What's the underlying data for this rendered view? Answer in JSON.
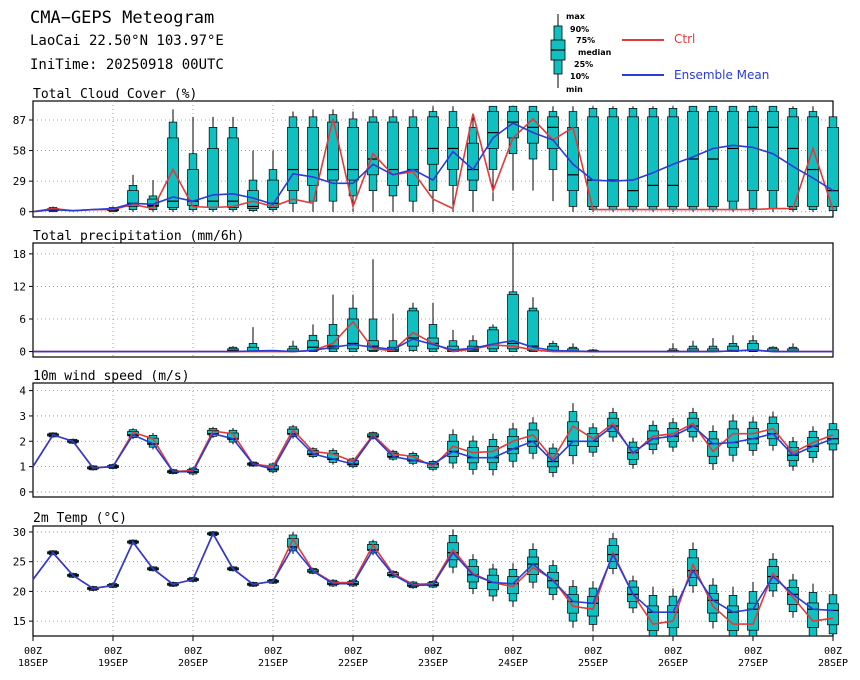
{
  "header": {
    "title": "CMA−GEPS Meteogram",
    "location": "LaoCai 22.50°N 103.97°E",
    "init_time": "IniTime: 20250918 00UTC"
  },
  "legend": {
    "box_labels": [
      "max",
      "90%",
      "75%",
      "median",
      "25%",
      "10%",
      "min"
    ],
    "ctrl_label": "Ctrl",
    "mean_label": "Ensemble Mean",
    "ctrl_color": "#e03a3a",
    "mean_color": "#2a3bd6",
    "box_color": "#10c0c0"
  },
  "time_axis": {
    "ticks": [
      {
        "top": "00Z",
        "bottom": "18SEP"
      },
      {
        "top": "00Z",
        "bottom": "19SEP"
      },
      {
        "top": "00Z",
        "bottom": "20SEP"
      },
      {
        "top": "00Z",
        "bottom": "21SEP"
      },
      {
        "top": "00Z",
        "bottom": "22SEP"
      },
      {
        "top": "00Z",
        "bottom": "23SEP"
      },
      {
        "top": "00Z",
        "bottom": "24SEP"
      },
      {
        "top": "00Z",
        "bottom": "25SEP"
      },
      {
        "top": "00Z",
        "bottom": "26SEP"
      },
      {
        "top": "00Z",
        "bottom": "27SEP"
      },
      {
        "top": "00Z",
        "bottom": "28SEP"
      }
    ]
  },
  "chart_data": [
    {
      "type": "boxplot-line",
      "title": "Total Cloud Cover (%)",
      "ylim": [
        -5,
        105
      ],
      "yticks": [
        0,
        29,
        58,
        87
      ],
      "x_unit": "6-hourly steps from 2025-09-18 00UTC (0-40)",
      "ctrl": [
        0,
        3,
        1,
        2,
        2,
        7,
        3,
        40,
        5,
        4,
        5,
        10,
        5,
        12,
        8,
        88,
        5,
        55,
        35,
        38,
        12,
        3,
        93,
        20,
        70,
        88,
        68,
        80,
        2,
        2,
        2,
        2,
        2,
        2,
        2,
        2,
        2,
        3,
        3,
        60,
        2
      ],
      "mean": [
        0,
        2,
        1,
        2,
        3,
        8,
        7,
        14,
        10,
        16,
        17,
        13,
        7,
        36,
        33,
        27,
        27,
        45,
        35,
        40,
        30,
        57,
        40,
        70,
        84,
        75,
        68,
        45,
        30,
        29,
        30,
        37,
        45,
        52,
        60,
        63,
        61,
        55,
        43,
        32,
        20
      ],
      "boxes": [
        {
          "t": 1,
          "min": 0,
          "p10": 0,
          "p25": 1,
          "med": 2,
          "p75": 3,
          "p90": 4,
          "max": 5
        },
        {
          "t": 4,
          "min": 0,
          "p10": 0,
          "p25": 1,
          "med": 2,
          "p75": 3,
          "p90": 4,
          "max": 5
        },
        {
          "t": 5,
          "min": 0,
          "p10": 2,
          "p25": 5,
          "med": 8,
          "p75": 20,
          "p90": 25,
          "max": 35
        },
        {
          "t": 6,
          "min": 0,
          "p10": 2,
          "p25": 5,
          "med": 6,
          "p75": 12,
          "p90": 15,
          "max": 30
        },
        {
          "t": 7,
          "min": 0,
          "p10": 2,
          "p25": 4,
          "med": 10,
          "p75": 70,
          "p90": 85,
          "max": 97
        },
        {
          "t": 8,
          "min": 0,
          "p10": 2,
          "p25": 6,
          "med": 10,
          "p75": 40,
          "p90": 55,
          "max": 90
        },
        {
          "t": 9,
          "min": 0,
          "p10": 2,
          "p25": 4,
          "med": 10,
          "p75": 60,
          "p90": 80,
          "max": 90
        },
        {
          "t": 10,
          "min": 0,
          "p10": 2,
          "p25": 4,
          "med": 10,
          "p75": 70,
          "p90": 80,
          "max": 90
        },
        {
          "t": 11,
          "min": 0,
          "p10": 1,
          "p25": 3,
          "med": 5,
          "p75": 20,
          "p90": 30,
          "max": 58
        },
        {
          "t": 12,
          "min": 0,
          "p10": 2,
          "p25": 4,
          "med": 8,
          "p75": 30,
          "p90": 40,
          "max": 58
        },
        {
          "t": 13,
          "min": 0,
          "p10": 8,
          "p25": 20,
          "med": 40,
          "p75": 80,
          "p90": 90,
          "max": 95
        },
        {
          "t": 14,
          "min": 0,
          "p10": 10,
          "p25": 25,
          "med": 40,
          "p75": 80,
          "p90": 90,
          "max": 97
        },
        {
          "t": 15,
          "min": 0,
          "p10": 10,
          "p25": 30,
          "med": 40,
          "p75": 85,
          "p90": 92,
          "max": 97
        },
        {
          "t": 16,
          "min": 0,
          "p10": 15,
          "p25": 30,
          "med": 40,
          "p75": 80,
          "p90": 88,
          "max": 95
        },
        {
          "t": 17,
          "min": 0,
          "p10": 20,
          "p25": 35,
          "med": 50,
          "p75": 85,
          "p90": 90,
          "max": 97
        },
        {
          "t": 18,
          "min": 0,
          "p10": 15,
          "p25": 25,
          "med": 40,
          "p75": 85,
          "p90": 90,
          "max": 97
        },
        {
          "t": 19,
          "min": 0,
          "p10": 10,
          "p25": 25,
          "med": 40,
          "p75": 80,
          "p90": 90,
          "max": 97
        },
        {
          "t": 20,
          "min": 0,
          "p10": 20,
          "p25": 45,
          "med": 60,
          "p75": 90,
          "p90": 95,
          "max": 100
        },
        {
          "t": 21,
          "min": 0,
          "p10": 25,
          "p25": 40,
          "med": 60,
          "p75": 80,
          "p90": 95,
          "max": 100
        },
        {
          "t": 22,
          "min": 0,
          "p10": 20,
          "p25": 30,
          "med": 40,
          "p75": 65,
          "p90": 80,
          "max": 90
        },
        {
          "t": 23,
          "min": 10,
          "p10": 40,
          "p25": 60,
          "med": 75,
          "p75": 95,
          "p90": 100,
          "max": 100
        },
        {
          "t": 24,
          "min": 20,
          "p10": 55,
          "p25": 70,
          "med": 85,
          "p75": 95,
          "p90": 100,
          "max": 100
        },
        {
          "t": 25,
          "min": 20,
          "p10": 50,
          "p25": 65,
          "med": 80,
          "p75": 95,
          "p90": 100,
          "max": 100
        },
        {
          "t": 26,
          "min": 10,
          "p10": 40,
          "p25": 60,
          "med": 80,
          "p75": 90,
          "p90": 95,
          "max": 100
        },
        {
          "t": 27,
          "min": 0,
          "p10": 5,
          "p25": 20,
          "med": 35,
          "p75": 80,
          "p90": 95,
          "max": 100
        },
        {
          "t": 28,
          "min": 0,
          "p10": 2,
          "p25": 5,
          "med": 30,
          "p75": 90,
          "p90": 98,
          "max": 100
        },
        {
          "t": 29,
          "min": 0,
          "p10": 2,
          "p25": 5,
          "med": 30,
          "p75": 90,
          "p90": 98,
          "max": 100
        },
        {
          "t": 30,
          "min": 0,
          "p10": 2,
          "p25": 5,
          "med": 20,
          "p75": 90,
          "p90": 98,
          "max": 100
        },
        {
          "t": 31,
          "min": 0,
          "p10": 2,
          "p25": 5,
          "med": 25,
          "p75": 90,
          "p90": 98,
          "max": 100
        },
        {
          "t": 32,
          "min": 0,
          "p10": 2,
          "p25": 5,
          "med": 25,
          "p75": 90,
          "p90": 98,
          "max": 100
        },
        {
          "t": 33,
          "min": 0,
          "p10": 2,
          "p25": 5,
          "med": 50,
          "p75": 95,
          "p90": 100,
          "max": 100
        },
        {
          "t": 34,
          "min": 0,
          "p10": 2,
          "p25": 5,
          "med": 50,
          "p75": 95,
          "p90": 100,
          "max": 100
        },
        {
          "t": 35,
          "min": 0,
          "p10": 2,
          "p25": 10,
          "med": 60,
          "p75": 95,
          "p90": 100,
          "max": 100
        },
        {
          "t": 36,
          "min": 0,
          "p10": 3,
          "p25": 20,
          "med": 80,
          "p75": 95,
          "p90": 100,
          "max": 100
        },
        {
          "t": 37,
          "min": 0,
          "p10": 3,
          "p25": 20,
          "med": 80,
          "p75": 95,
          "p90": 100,
          "max": 100
        },
        {
          "t": 38,
          "min": 0,
          "p10": 2,
          "p25": 5,
          "med": 60,
          "p75": 90,
          "p90": 98,
          "max": 100
        },
        {
          "t": 39,
          "min": 0,
          "p10": 2,
          "p25": 5,
          "med": 40,
          "p75": 90,
          "p90": 95,
          "max": 100
        },
        {
          "t": 40,
          "min": 0,
          "p10": 1,
          "p25": 5,
          "med": 20,
          "p75": 80,
          "p90": 90,
          "max": 90
        }
      ]
    },
    {
      "type": "boxplot-line",
      "title": "Total precipitation (mm/6h)",
      "ylim": [
        -1,
        20
      ],
      "yticks": [
        0,
        6,
        12,
        18
      ],
      "x_unit": "6-hourly steps from 2025-09-18 00UTC (0-40)",
      "ctrl": [
        0,
        0,
        0,
        0,
        0,
        0,
        0,
        0,
        0,
        0,
        0,
        0,
        0,
        0,
        0.2,
        1.5,
        5.5,
        0.5,
        0.2,
        3.5,
        1.5,
        0,
        0.5,
        1.2,
        1,
        0.3,
        0,
        0,
        0,
        0,
        0,
        0,
        0,
        0,
        0,
        0.1,
        0.3,
        0,
        0,
        0,
        0
      ],
      "mean": [
        0,
        0,
        0,
        0,
        0,
        0,
        0,
        0,
        0,
        0,
        0,
        0.1,
        0.2,
        0,
        0.2,
        0.8,
        1.3,
        0.8,
        0.4,
        2.3,
        1.3,
        0.3,
        0.6,
        1.4,
        2.0,
        0.8,
        0.2,
        0.1,
        0,
        0,
        0,
        0,
        0,
        0,
        0,
        0.1,
        0.3,
        0,
        0,
        0,
        0
      ],
      "boxes": [
        {
          "t": 10,
          "min": 0,
          "p10": 0,
          "p25": 0,
          "med": 0.2,
          "p75": 0.5,
          "p90": 0.8,
          "max": 1
        },
        {
          "t": 11,
          "min": 0,
          "p10": 0,
          "p25": 0,
          "med": 0.1,
          "p75": 0.8,
          "p90": 1.5,
          "max": 4.5
        },
        {
          "t": 13,
          "min": 0,
          "p10": 0,
          "p25": 0,
          "med": 0.1,
          "p75": 0.5,
          "p90": 1,
          "max": 2
        },
        {
          "t": 14,
          "min": 0,
          "p10": 0,
          "p25": 0.2,
          "med": 0.8,
          "p75": 2,
          "p90": 3,
          "max": 5
        },
        {
          "t": 15,
          "min": 0,
          "p10": 0,
          "p25": 0.5,
          "med": 1,
          "p75": 3,
          "p90": 5,
          "max": 10.5
        },
        {
          "t": 16,
          "min": 0,
          "p10": 0,
          "p25": 0.5,
          "med": 1.5,
          "p75": 6,
          "p90": 8,
          "max": 10.5
        },
        {
          "t": 17,
          "min": 0,
          "p10": 0,
          "p25": 0.2,
          "med": 1,
          "p75": 2,
          "p90": 6,
          "max": 17
        },
        {
          "t": 18,
          "min": 0,
          "p10": 0,
          "p25": 0,
          "med": 0.3,
          "p75": 0.8,
          "p90": 2,
          "max": 7
        },
        {
          "t": 19,
          "min": 0,
          "p10": 0.2,
          "p25": 1,
          "med": 2.5,
          "p75": 7.5,
          "p90": 8,
          "max": 9
        },
        {
          "t": 20,
          "min": 0,
          "p10": 0,
          "p25": 0.5,
          "med": 1.5,
          "p75": 2.5,
          "p90": 5,
          "max": 9
        },
        {
          "t": 21,
          "min": 0,
          "p10": 0,
          "p25": 0,
          "med": 0.2,
          "p75": 1,
          "p90": 2,
          "max": 4
        },
        {
          "t": 22,
          "min": 0,
          "p10": 0,
          "p25": 0,
          "med": 0.3,
          "p75": 1,
          "p90": 2,
          "max": 3
        },
        {
          "t": 23,
          "min": 0,
          "p10": 0,
          "p25": 0.5,
          "med": 1.2,
          "p75": 4,
          "p90": 4.5,
          "max": 5
        },
        {
          "t": 24,
          "min": 0,
          "p10": 0,
          "p25": 0.5,
          "med": 1.5,
          "p75": 10.5,
          "p90": 11,
          "max": 20
        },
        {
          "t": 25,
          "min": 0,
          "p10": 0,
          "p25": 0.2,
          "med": 1,
          "p75": 7.5,
          "p90": 8,
          "max": 10
        },
        {
          "t": 26,
          "min": 0,
          "p10": 0,
          "p25": 0,
          "med": 0.2,
          "p75": 1,
          "p90": 1.5,
          "max": 2
        },
        {
          "t": 27,
          "min": 0,
          "p10": 0,
          "p25": 0,
          "med": 0.1,
          "p75": 0.5,
          "p90": 0.8,
          "max": 1.5
        },
        {
          "t": 28,
          "min": 0,
          "p10": 0,
          "p25": 0,
          "med": 0,
          "p75": 0.2,
          "p90": 0.3,
          "max": 0.5
        },
        {
          "t": 32,
          "min": 0,
          "p10": 0,
          "p25": 0,
          "med": 0,
          "p75": 0.2,
          "p90": 0.5,
          "max": 1.5
        },
        {
          "t": 33,
          "min": 0,
          "p10": 0,
          "p25": 0,
          "med": 0.1,
          "p75": 0.5,
          "p90": 1,
          "max": 2
        },
        {
          "t": 34,
          "min": 0,
          "p10": 0,
          "p25": 0,
          "med": 0.1,
          "p75": 0.5,
          "p90": 1,
          "max": 2.5
        },
        {
          "t": 35,
          "min": 0,
          "p10": 0,
          "p25": 0,
          "med": 0.2,
          "p75": 1,
          "p90": 1.5,
          "max": 3
        },
        {
          "t": 36,
          "min": 0,
          "p10": 0,
          "p25": 0.1,
          "med": 0.3,
          "p75": 1.5,
          "p90": 2,
          "max": 3
        },
        {
          "t": 37,
          "min": 0,
          "p10": 0,
          "p25": 0,
          "med": 0.1,
          "p75": 0.5,
          "p90": 0.8,
          "max": 1
        },
        {
          "t": 38,
          "min": 0,
          "p10": 0,
          "p25": 0,
          "med": 0.1,
          "p75": 0.5,
          "p90": 0.8,
          "max": 1.5
        }
      ]
    },
    {
      "type": "boxplot-line",
      "title": "10m wind speed (m/s)",
      "ylim": [
        -0.2,
        4.3
      ],
      "yticks": [
        0,
        1,
        2,
        3,
        4
      ],
      "x_unit": "6-hourly steps from 2025-09-18 00UTC (0-40)",
      "ctrl": [
        1.0,
        2.25,
        2.0,
        0.95,
        1.0,
        2.35,
        2.1,
        0.8,
        0.85,
        2.4,
        2.3,
        1.1,
        1.0,
        2.45,
        1.6,
        1.5,
        1.2,
        2.25,
        1.5,
        1.4,
        1.0,
        1.8,
        1.55,
        1.6,
        2.0,
        2.25,
        1.3,
        2.6,
        2.1,
        2.7,
        1.5,
        2.2,
        2.3,
        2.7,
        1.6,
        2.3,
        2.3,
        2.5,
        1.55,
        1.95,
        2.25
      ],
      "mean": [
        1.0,
        2.25,
        2.0,
        0.95,
        1.0,
        2.25,
        1.9,
        0.8,
        0.8,
        2.3,
        2.1,
        1.1,
        0.9,
        2.3,
        1.5,
        1.3,
        1.1,
        2.2,
        1.4,
        1.25,
        1.1,
        1.6,
        1.35,
        1.35,
        1.7,
        2.0,
        1.2,
        2.0,
        2.0,
        2.6,
        1.55,
        2.1,
        2.2,
        2.6,
        1.9,
        1.95,
        2.1,
        2.3,
        1.45,
        1.8,
        2.1
      ]
    },
    {
      "type": "boxplot-line",
      "title": "2m Temp (°C)",
      "ylim": [
        12.5,
        31
      ],
      "yticks": [
        15,
        20,
        25,
        30
      ],
      "x_unit": "6-hourly steps from 2025-09-18 00UTC (0-40)",
      "ctrl": [
        22,
        26.5,
        22.7,
        20.5,
        21,
        28.3,
        23.8,
        21.2,
        22,
        29.7,
        23.8,
        21.2,
        21.7,
        28.8,
        23.5,
        21.5,
        21.5,
        27.8,
        23,
        21.2,
        21.3,
        27,
        23,
        21.5,
        20.8,
        24,
        22,
        17.5,
        17,
        26.5,
        19.5,
        14.5,
        15,
        24.5,
        17.5,
        14.5,
        14.5,
        23,
        19,
        15,
        15.5
      ],
      "mean": [
        22,
        26.5,
        22.7,
        20.5,
        21,
        28.3,
        23.8,
        21.2,
        22,
        29.7,
        23.8,
        21.2,
        21.7,
        27.5,
        23.4,
        21.3,
        21.3,
        27.0,
        22.8,
        21.0,
        21.1,
        26.5,
        22.8,
        21.5,
        21.3,
        24.6,
        21.8,
        18.3,
        18.0,
        26.2,
        19.5,
        16.5,
        16.5,
        23.5,
        18.5,
        16.5,
        17.0,
        22.5,
        19.5,
        17.0,
        16.8
      ]
    }
  ]
}
